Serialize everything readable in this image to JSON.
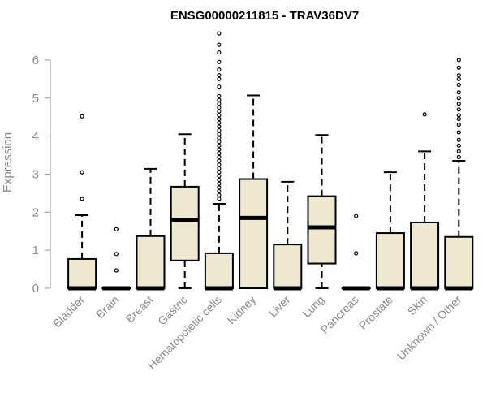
{
  "chart_data": {
    "type": "boxplot",
    "title": "ENSG00000211815 - TRAV36DV7",
    "xlabel": "",
    "ylabel": "Expression",
    "ylim": [
      0,
      6.7
    ],
    "yticks": [
      0,
      1,
      2,
      3,
      4,
      5,
      6
    ],
    "box_fill": "#EEE8D1",
    "categories": [
      "Bladder",
      "Brain",
      "Breast",
      "Gastric",
      "Hematopoietic cells",
      "Kidney",
      "Liver",
      "Lung",
      "Pancreas",
      "Prostate",
      "Skin",
      "Unknown / Other"
    ],
    "boxes": [
      {
        "name": "Bladder",
        "min": 0,
        "q1": 0,
        "median": 0,
        "q3": 0.77,
        "max": 1.92,
        "outliers": [
          2.35,
          3.05,
          4.52
        ]
      },
      {
        "name": "Brain",
        "min": 0,
        "q1": 0,
        "median": 0,
        "q3": 0,
        "max": 0,
        "outliers": [
          0.47,
          0.9,
          1.55
        ]
      },
      {
        "name": "Breast",
        "min": 0,
        "q1": 0,
        "median": 0,
        "q3": 1.37,
        "max": 3.14,
        "outliers": []
      },
      {
        "name": "Gastric",
        "min": 0,
        "q1": 0.73,
        "median": 1.8,
        "q3": 2.67,
        "max": 4.05,
        "outliers": []
      },
      {
        "name": "Hematopoietic cells",
        "min": 0,
        "q1": 0,
        "median": 0,
        "q3": 0.92,
        "max": 2.22,
        "outliers": [
          2.35,
          2.45,
          2.55,
          2.65,
          2.75,
          2.85,
          2.95,
          3.05,
          3.15,
          3.25,
          3.35,
          3.45,
          3.55,
          3.65,
          3.75,
          3.85,
          3.95,
          4.05,
          4.15,
          4.25,
          4.35,
          4.45,
          4.55,
          4.65,
          4.75,
          4.85,
          4.95,
          5.05,
          5.3,
          5.5,
          5.6,
          5.75,
          5.95,
          6.2,
          6.4,
          6.7
        ]
      },
      {
        "name": "Kidney",
        "min": 0,
        "q1": 0,
        "median": 1.85,
        "q3": 2.87,
        "max": 5.07,
        "outliers": []
      },
      {
        "name": "Liver",
        "min": 0,
        "q1": 0,
        "median": 0,
        "q3": 1.15,
        "max": 2.8,
        "outliers": []
      },
      {
        "name": "Lung",
        "min": 0,
        "q1": 0.65,
        "median": 1.6,
        "q3": 2.42,
        "max": 4.03,
        "outliers": []
      },
      {
        "name": "Pancreas",
        "min": 0,
        "q1": 0,
        "median": 0,
        "q3": 0,
        "max": 0,
        "outliers": [
          0.92,
          1.9
        ]
      },
      {
        "name": "Prostate",
        "min": 0,
        "q1": 0,
        "median": 0,
        "q3": 1.45,
        "max": 3.05,
        "outliers": []
      },
      {
        "name": "Skin",
        "min": 0,
        "q1": 0,
        "median": 0,
        "q3": 1.73,
        "max": 3.6,
        "outliers": [
          4.57
        ]
      },
      {
        "name": "Unknown / Other",
        "min": 0,
        "q1": 0,
        "median": 0,
        "q3": 1.35,
        "max": 3.35,
        "outliers": [
          3.45,
          3.6,
          3.75,
          3.9,
          4.1,
          4.3,
          4.45,
          4.55,
          4.7,
          4.85,
          5.0,
          5.15,
          5.35,
          5.5,
          5.6,
          5.8,
          6.0
        ]
      }
    ]
  }
}
